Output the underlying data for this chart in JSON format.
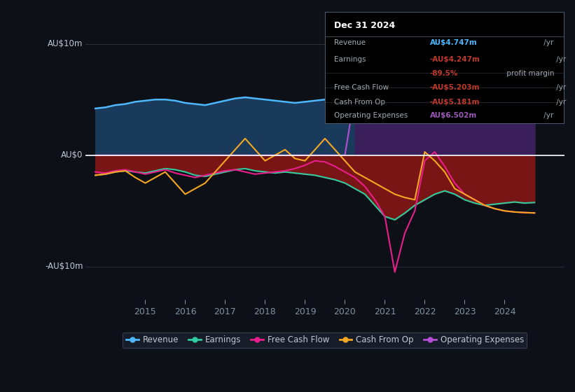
{
  "bg_color": "#0d1117",
  "grid_color": "#2a3040",
  "zero_line_color": "#ffffff",
  "ylabel_top": "AU$10m",
  "ylabel_zero": "AU$0",
  "ylabel_bottom": "-AU$10m",
  "ylim": [
    -13,
    13
  ],
  "xlim": [
    2013.5,
    2025.5
  ],
  "xticks": [
    2015,
    2016,
    2017,
    2018,
    2019,
    2020,
    2021,
    2022,
    2023,
    2024
  ],
  "info_box": {
    "date": "Dec 31 2024",
    "rows": [
      {
        "label": "Revenue",
        "value": "AU$4.747m",
        "value_color": "#4db8ff",
        "suffix": " /yr"
      },
      {
        "label": "Earnings",
        "value": "-AU$4.247m",
        "value_color": "#c0392b",
        "suffix": " /yr"
      },
      {
        "label": "",
        "value": "-89.5%",
        "value_color": "#c0392b",
        "suffix": " profit margin"
      },
      {
        "label": "Free Cash Flow",
        "value": "-AU$5.203m",
        "value_color": "#c0392b",
        "suffix": " /yr"
      },
      {
        "label": "Cash From Op",
        "value": "-AU$5.181m",
        "value_color": "#c0392b",
        "suffix": " /yr"
      },
      {
        "label": "Operating Expenses",
        "value": "AU$6.502m",
        "value_color": "#9b59b6",
        "suffix": " /yr"
      }
    ]
  },
  "series": {
    "revenue": {
      "color": "#4db8ff",
      "fill_color": "#1a3a5c",
      "x": [
        2013.75,
        2014.0,
        2014.25,
        2014.5,
        2014.75,
        2015.0,
        2015.25,
        2015.5,
        2015.75,
        2016.0,
        2016.25,
        2016.5,
        2016.75,
        2017.0,
        2017.25,
        2017.5,
        2017.75,
        2018.0,
        2018.25,
        2018.5,
        2018.75,
        2019.0,
        2019.25,
        2019.5,
        2019.75,
        2020.0,
        2020.25,
        2020.5,
        2020.75,
        2021.0,
        2021.25,
        2021.5,
        2021.75,
        2022.0,
        2022.25,
        2022.5,
        2022.75,
        2023.0,
        2023.25,
        2023.5,
        2023.75,
        2024.0,
        2024.25,
        2024.5,
        2024.75
      ],
      "y": [
        4.2,
        4.3,
        4.5,
        4.6,
        4.8,
        4.9,
        5.0,
        5.0,
        4.9,
        4.7,
        4.6,
        4.5,
        4.7,
        4.9,
        5.1,
        5.2,
        5.1,
        5.0,
        4.9,
        4.8,
        4.7,
        4.8,
        4.9,
        5.0,
        4.7,
        4.4,
        4.1,
        3.9,
        3.8,
        3.8,
        4.0,
        4.2,
        4.5,
        4.8,
        5.2,
        5.5,
        5.3,
        4.9,
        4.6,
        4.5,
        4.6,
        4.8,
        5.0,
        4.9,
        4.747
      ]
    },
    "earnings": {
      "color": "#2ecc9e",
      "x": [
        2013.75,
        2014.0,
        2014.25,
        2014.5,
        2014.75,
        2015.0,
        2015.25,
        2015.5,
        2015.75,
        2016.0,
        2016.25,
        2016.5,
        2016.75,
        2017.0,
        2017.25,
        2017.5,
        2017.75,
        2018.0,
        2018.25,
        2018.5,
        2018.75,
        2019.0,
        2019.25,
        2019.5,
        2019.75,
        2020.0,
        2020.25,
        2020.5,
        2020.75,
        2021.0,
        2021.25,
        2021.5,
        2021.75,
        2022.0,
        2022.25,
        2022.5,
        2022.75,
        2023.0,
        2023.25,
        2023.5,
        2023.75,
        2024.0,
        2024.25,
        2024.5,
        2024.75
      ],
      "y": [
        -1.8,
        -1.7,
        -1.5,
        -1.4,
        -1.5,
        -1.6,
        -1.4,
        -1.2,
        -1.3,
        -1.5,
        -1.8,
        -1.9,
        -1.7,
        -1.5,
        -1.3,
        -1.2,
        -1.4,
        -1.5,
        -1.6,
        -1.5,
        -1.6,
        -1.7,
        -1.8,
        -2.0,
        -2.2,
        -2.5,
        -3.0,
        -3.5,
        -4.5,
        -5.5,
        -5.8,
        -5.2,
        -4.5,
        -4.0,
        -3.5,
        -3.2,
        -3.5,
        -4.0,
        -4.3,
        -4.5,
        -4.4,
        -4.3,
        -4.2,
        -4.3,
        -4.247
      ]
    },
    "free_cash_flow": {
      "color": "#e91e8c",
      "x": [
        2013.75,
        2014.0,
        2014.25,
        2014.5,
        2014.75,
        2015.0,
        2015.25,
        2015.5,
        2015.75,
        2016.0,
        2016.25,
        2016.5,
        2016.75,
        2017.0,
        2017.25,
        2017.5,
        2017.75,
        2018.0,
        2018.25,
        2018.5,
        2018.75,
        2019.0,
        2019.25,
        2019.5,
        2019.75,
        2020.0,
        2020.25,
        2020.5,
        2020.75,
        2021.0,
        2021.25,
        2021.5,
        2021.75,
        2022.0,
        2022.25,
        2022.5,
        2022.75,
        2023.0,
        2023.25,
        2023.5,
        2023.75,
        2024.0,
        2024.25,
        2024.5,
        2024.75
      ],
      "y": [
        -1.5,
        -1.6,
        -1.4,
        -1.3,
        -1.5,
        -1.7,
        -1.5,
        -1.3,
        -1.6,
        -1.8,
        -2.0,
        -1.8,
        -1.6,
        -1.4,
        -1.3,
        -1.5,
        -1.7,
        -1.6,
        -1.5,
        -1.4,
        -1.2,
        -0.9,
        -0.5,
        -0.6,
        -1.0,
        -1.5,
        -2.0,
        -2.8,
        -4.0,
        -5.5,
        -10.5,
        -7.0,
        -5.0,
        -0.5,
        0.3,
        -1.0,
        -2.5,
        -3.5,
        -4.0,
        -4.5,
        -4.8,
        -5.0,
        -5.1,
        -5.15,
        -5.203
      ]
    },
    "cash_from_op": {
      "color": "#f5a623",
      "x": [
        2013.75,
        2014.0,
        2014.25,
        2014.5,
        2014.75,
        2015.0,
        2015.25,
        2015.5,
        2015.75,
        2016.0,
        2016.25,
        2016.5,
        2016.75,
        2017.0,
        2017.25,
        2017.5,
        2017.75,
        2018.0,
        2018.25,
        2018.5,
        2018.75,
        2019.0,
        2019.25,
        2019.5,
        2019.75,
        2020.0,
        2020.25,
        2020.5,
        2020.75,
        2021.0,
        2021.25,
        2021.5,
        2021.75,
        2022.0,
        2022.25,
        2022.5,
        2022.75,
        2023.0,
        2023.25,
        2023.5,
        2023.75,
        2024.0,
        2024.25,
        2024.5,
        2024.75
      ],
      "y": [
        -1.8,
        -1.7,
        -1.5,
        -1.4,
        -2.0,
        -2.5,
        -2.0,
        -1.5,
        -2.5,
        -3.5,
        -3.0,
        -2.5,
        -1.5,
        -0.5,
        0.5,
        1.5,
        0.5,
        -0.5,
        0.0,
        0.5,
        -0.3,
        -0.5,
        0.5,
        1.5,
        0.5,
        -0.5,
        -1.5,
        -2.0,
        -2.5,
        -3.0,
        -3.5,
        -3.8,
        -4.0,
        0.3,
        -0.5,
        -1.5,
        -3.0,
        -3.5,
        -4.0,
        -4.5,
        -4.8,
        -5.0,
        -5.1,
        -5.15,
        -5.181
      ]
    },
    "operating_expenses": {
      "color": "#b44fd4",
      "fill_color": "#4b2878",
      "x": [
        2013.75,
        2014.0,
        2014.25,
        2014.5,
        2014.75,
        2015.0,
        2015.25,
        2015.5,
        2015.75,
        2016.0,
        2016.25,
        2016.5,
        2016.75,
        2017.0,
        2017.25,
        2017.5,
        2017.75,
        2018.0,
        2018.25,
        2018.5,
        2018.75,
        2019.0,
        2019.25,
        2019.5,
        2019.75,
        2020.0,
        2020.25,
        2020.5,
        2020.75,
        2021.0,
        2021.25,
        2021.5,
        2021.75,
        2022.0,
        2022.25,
        2022.5,
        2022.75,
        2023.0,
        2023.25,
        2023.5,
        2023.75,
        2024.0,
        2024.25,
        2024.5,
        2024.75
      ],
      "y": [
        0.0,
        0.0,
        0.0,
        0.0,
        0.0,
        0.0,
        0.0,
        0.0,
        0.0,
        0.0,
        0.0,
        0.0,
        0.0,
        0.0,
        0.0,
        0.0,
        0.0,
        0.0,
        0.0,
        0.0,
        0.0,
        0.0,
        0.0,
        0.0,
        0.0,
        0.0,
        5.5,
        5.8,
        6.5,
        7.0,
        7.5,
        8.5,
        9.5,
        10.5,
        10.0,
        9.5,
        8.5,
        7.5,
        7.0,
        6.8,
        6.6,
        6.5,
        6.5,
        6.502,
        6.502
      ]
    }
  },
  "legend": [
    {
      "label": "Revenue",
      "color": "#4db8ff"
    },
    {
      "label": "Earnings",
      "color": "#2ecc9e"
    },
    {
      "label": "Free Cash Flow",
      "color": "#e91e8c"
    },
    {
      "label": "Cash From Op",
      "color": "#f5a623"
    },
    {
      "label": "Operating Expenses",
      "color": "#b44fd4"
    }
  ]
}
